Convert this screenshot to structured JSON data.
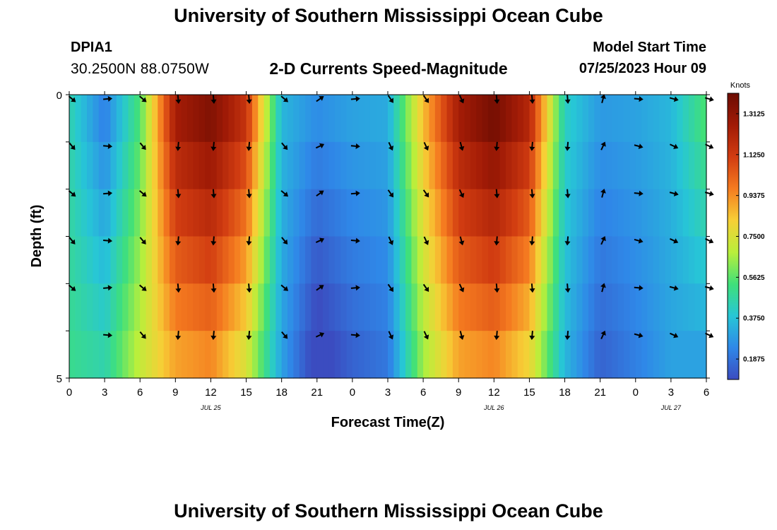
{
  "header": {
    "title": "University of Southern Mississippi Ocean Cube",
    "station": "DPIA1",
    "coords": "30.2500N  88.0750W",
    "subtitle": "2-D Currents Speed-Magnitude",
    "model_start_label": "Model Start Time",
    "model_start_value": "07/25/2023 Hour 09"
  },
  "footer": {
    "title": "University of Southern Mississippi Ocean Cube"
  },
  "chart_data": {
    "type": "heatmap",
    "title": "2-D Currents Speed-Magnitude",
    "xlabel": "Forecast Time(Z)",
    "ylabel": "Depth (ft)",
    "x_tick_labels": [
      "0",
      "3",
      "6",
      "9",
      "12",
      "15",
      "18",
      "21",
      "0",
      "3",
      "6",
      "9",
      "12",
      "15",
      "18",
      "21",
      "0",
      "3",
      "6"
    ],
    "y_tick_labels": [
      "0",
      "5"
    ],
    "ylim": [
      0,
      5
    ],
    "date_labels": [
      {
        "label": "JUL 25",
        "at_tick": 4
      },
      {
        "label": "JUL 26",
        "at_tick": 12
      },
      {
        "label": "JUL 27",
        "at_tick": 17
      }
    ],
    "colorbar": {
      "label": "Knots",
      "min": 0.09375,
      "max": 1.40625,
      "ticks": [
        "1.3125",
        "1.1250",
        "0.9375",
        "0.7500",
        "0.5625",
        "0.3750",
        "0.1875"
      ],
      "colors": [
        "#3b4cc0",
        "#2f88e8",
        "#27c6d6",
        "#3fe07a",
        "#b9ef3b",
        "#f7cf36",
        "#f57b20",
        "#d13c11",
        "#a11b06",
        "#6c0c02"
      ]
    },
    "depth_rows": [
      0,
      1,
      2,
      3,
      4,
      5
    ],
    "hours_from_start": [
      0,
      3,
      6,
      9,
      12,
      15,
      18,
      21,
      24,
      27,
      30,
      33,
      36,
      39,
      42,
      45,
      48,
      51,
      54
    ],
    "speed_at_surface_knots": [
      0.45,
      0.22,
      0.55,
      1.25,
      1.35,
      1.15,
      0.35,
      0.25,
      0.3,
      0.32,
      0.85,
      1.25,
      1.38,
      1.2,
      0.42,
      0.28,
      0.3,
      0.35,
      0.55
    ],
    "speed_at_bottom_knots": [
      0.5,
      0.45,
      0.7,
      0.9,
      0.95,
      0.75,
      0.3,
      0.05,
      0.15,
      0.2,
      0.65,
      0.9,
      0.95,
      0.8,
      0.35,
      0.15,
      0.22,
      0.3,
      0.3
    ],
    "vector_direction_deg_by_tick": [
      135,
      90,
      135,
      180,
      180,
      180,
      135,
      60,
      90,
      150,
      150,
      160,
      180,
      180,
      180,
      20,
      100,
      110,
      110
    ]
  }
}
